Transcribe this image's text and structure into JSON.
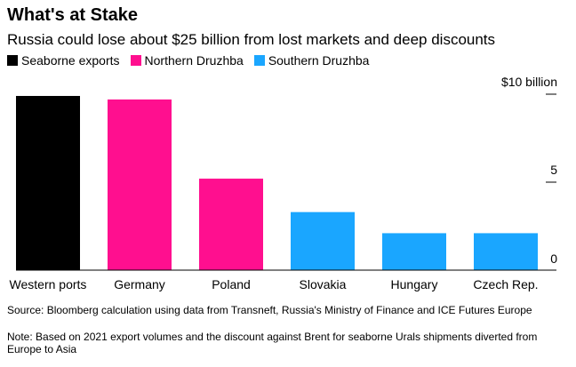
{
  "title": "What's at Stake",
  "subtitle": "Russia could lose about $25 billion from lost markets and deep discounts",
  "legend": [
    {
      "label": "Seaborne exports",
      "color": "#000000"
    },
    {
      "label": "Northern Druzhba",
      "color": "#ff0f8f"
    },
    {
      "label": "Southern Druzhba",
      "color": "#1aa6ff"
    }
  ],
  "chart_data": {
    "type": "bar",
    "categories": [
      "Western ports",
      "Germany",
      "Poland",
      "Slovakia",
      "Hungary",
      "Czech Rep."
    ],
    "values": [
      9.9,
      9.7,
      5.2,
      3.3,
      2.1,
      2.1
    ],
    "category_legend": [
      "Seaborne exports",
      "Northern Druzhba",
      "Northern Druzhba",
      "Southern Druzhba",
      "Southern Druzhba",
      "Southern Druzhba"
    ],
    "ylim": [
      0,
      10
    ],
    "yticks": [
      0,
      5,
      10
    ],
    "ytick_labels": [
      "0",
      "5",
      "$10 billion"
    ],
    "axis_side": "right",
    "grid": false,
    "legend_position": "top-left"
  },
  "source": "Source: Bloomberg calculation using data from Transneft, Russia's Ministry of Finance and ICE Futures Europe",
  "note": "Note: Based on 2021 export volumes and the discount against Brent for seaborne Urals shipments diverted from Europe to Asia"
}
